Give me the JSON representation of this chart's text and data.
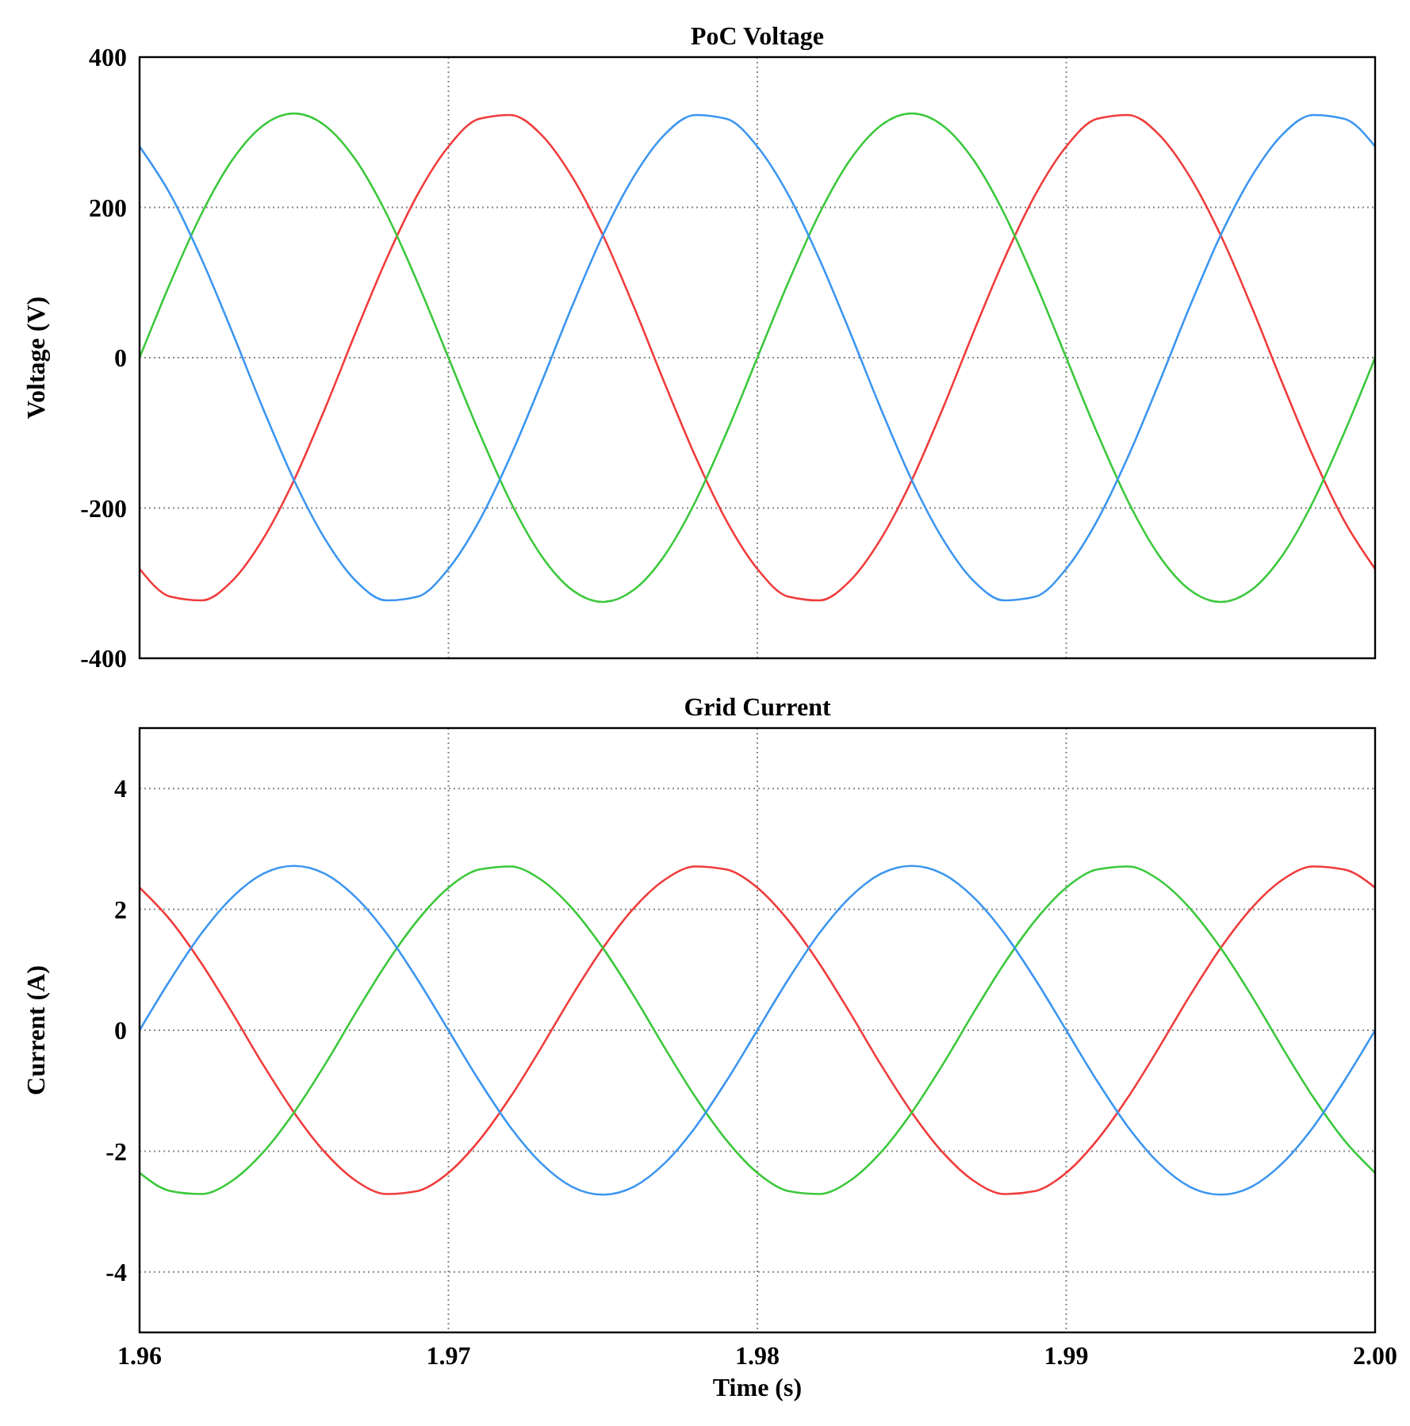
{
  "chart_data": [
    {
      "type": "line",
      "title": "PoC Voltage",
      "ylabel": "Voltage (V)",
      "x": [
        1.96,
        1.961,
        1.962,
        1.963,
        1.964,
        1.965,
        1.966,
        1.967,
        1.968,
        1.969,
        1.97,
        1.971,
        1.972,
        1.973,
        1.974,
        1.975,
        1.976,
        1.977,
        1.978,
        1.979,
        1.98,
        1.981,
        1.982,
        1.983,
        1.984,
        1.985,
        1.986,
        1.987,
        1.988,
        1.989,
        1.99,
        1.991,
        1.992,
        1.993,
        1.994,
        1.995,
        1.996,
        1.997,
        1.998,
        1.999,
        2.0
      ],
      "xlim": [
        1.96,
        2.0
      ],
      "xticks": [
        1.96,
        1.97,
        1.98,
        1.99,
        2.0
      ],
      "ylim": [
        -400,
        400
      ],
      "yticks": [
        -400,
        -200,
        0,
        200,
        400
      ],
      "grid": true,
      "tick_labels": "y",
      "series": [
        {
          "color": "#f03c3c",
          "values": [
            -281,
            -318,
            -323,
            -297,
            -241,
            -163,
            -68,
            34,
            132,
            217,
            281,
            318,
            323,
            297,
            241,
            163,
            68,
            -34,
            -132,
            -217,
            -281,
            -318,
            -323,
            -297,
            -241,
            -163,
            -68,
            34,
            132,
            217,
            281,
            318,
            323,
            297,
            241,
            163,
            68,
            -34,
            -132,
            -217,
            -281
          ]
        },
        {
          "color": "#3cc83c",
          "values": [
            0,
            100,
            191,
            263,
            309,
            325,
            309,
            263,
            191,
            100,
            0,
            -100,
            -191,
            -263,
            -309,
            -325,
            -309,
            -263,
            -191,
            -100,
            0,
            100,
            191,
            263,
            309,
            325,
            309,
            263,
            191,
            100,
            0,
            -100,
            -191,
            -263,
            -309,
            -325,
            -309,
            -263,
            -191,
            -100,
            0
          ]
        },
        {
          "color": "#3c96f0",
          "values": [
            281,
            217,
            132,
            34,
            -68,
            -163,
            -241,
            -297,
            -323,
            -318,
            -281,
            -217,
            -132,
            -34,
            68,
            163,
            241,
            297,
            323,
            318,
            281,
            217,
            132,
            34,
            -68,
            -163,
            -241,
            -297,
            -323,
            -318,
            -281,
            -217,
            -132,
            -34,
            68,
            163,
            241,
            297,
            323,
            318,
            281
          ]
        }
      ]
    },
    {
      "type": "line",
      "title": "Grid Current",
      "xlabel": "Time (s)",
      "ylabel": "Current (A)",
      "x": [
        1.96,
        1.961,
        1.962,
        1.963,
        1.964,
        1.965,
        1.966,
        1.967,
        1.968,
        1.969,
        1.97,
        1.971,
        1.972,
        1.973,
        1.974,
        1.975,
        1.976,
        1.977,
        1.978,
        1.979,
        1.98,
        1.981,
        1.982,
        1.983,
        1.984,
        1.985,
        1.986,
        1.987,
        1.988,
        1.989,
        1.99,
        1.991,
        1.992,
        1.993,
        1.994,
        1.995,
        1.996,
        1.997,
        1.998,
        1.999,
        2.0
      ],
      "xlim": [
        1.96,
        2.0
      ],
      "xticks": [
        {
          "value": 1.96,
          "label": "1.96"
        },
        1.97,
        1.98,
        1.99,
        {
          "value": 2.0,
          "label": "2.00"
        }
      ],
      "ylim": [
        -5,
        5
      ],
      "yticks": [
        -4,
        -2,
        0,
        2,
        4
      ],
      "grid": true,
      "series": [
        {
          "color": "#f03c3c",
          "values": [
            2.36,
            1.82,
            1.11,
            0.29,
            -0.57,
            -1.36,
            -2.02,
            -2.49,
            -2.71,
            -2.66,
            -2.36,
            -1.82,
            -1.11,
            -0.29,
            0.57,
            1.36,
            2.02,
            2.49,
            2.71,
            2.66,
            2.36,
            1.82,
            1.11,
            0.29,
            -0.57,
            -1.36,
            -2.02,
            -2.49,
            -2.71,
            -2.66,
            -2.36,
            -1.82,
            -1.11,
            -0.29,
            0.57,
            1.36,
            2.02,
            2.49,
            2.71,
            2.66,
            2.36
          ]
        },
        {
          "color": "#3cc83c",
          "values": [
            -2.36,
            -2.66,
            -2.71,
            -2.49,
            -2.02,
            -1.36,
            -0.57,
            0.29,
            1.11,
            1.82,
            2.36,
            2.66,
            2.71,
            2.49,
            2.02,
            1.36,
            0.57,
            -0.29,
            -1.11,
            -1.82,
            -2.36,
            -2.66,
            -2.71,
            -2.49,
            -2.02,
            -1.36,
            -0.57,
            0.29,
            1.11,
            1.82,
            2.36,
            2.66,
            2.71,
            2.49,
            2.02,
            1.36,
            0.57,
            -0.29,
            -1.11,
            -1.82,
            -2.36
          ]
        },
        {
          "color": "#3c96f0",
          "values": [
            0,
            0.84,
            1.6,
            2.2,
            2.59,
            2.72,
            2.59,
            2.2,
            1.6,
            0.84,
            0,
            -0.84,
            -1.6,
            -2.2,
            -2.59,
            -2.72,
            -2.59,
            -2.2,
            -1.6,
            -0.84,
            0,
            0.84,
            1.6,
            2.2,
            2.59,
            2.72,
            2.59,
            2.2,
            1.6,
            0.84,
            0,
            -0.84,
            -1.6,
            -2.2,
            -2.59,
            -2.72,
            -2.59,
            -2.2,
            -1.6,
            -0.84,
            0
          ]
        }
      ]
    }
  ]
}
